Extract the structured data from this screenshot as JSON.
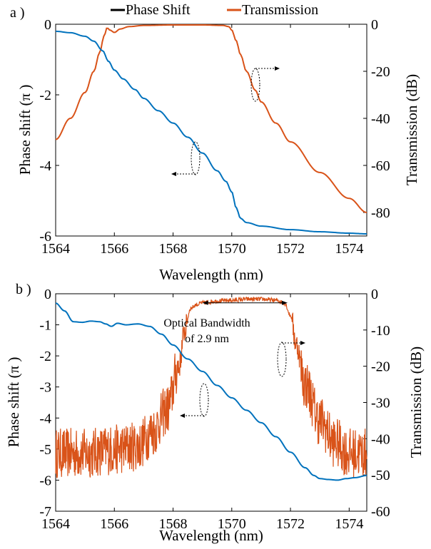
{
  "legend": {
    "phase_label": "Phase Shift",
    "trans_label": "Transmission",
    "phase_color": "#000000",
    "trans_color": "#D95319"
  },
  "colors": {
    "phase_line": "#0072BD",
    "trans_line": "#D95319"
  },
  "chart_data": [
    {
      "panel_label": "a )",
      "type": "line",
      "title": "",
      "xlabel": "Wavelength (nm)",
      "ylabel_left": "Phase shift (π )",
      "ylabel_right": "Transmission  (dB)",
      "xlim": [
        1564,
        1574.6
      ],
      "ylim_left": [
        -6,
        0
      ],
      "ylim_right": [
        -90,
        0
      ],
      "xticks": [
        1564,
        1566,
        1568,
        1570,
        1572,
        1574
      ],
      "yticks_left": [
        0,
        -2,
        -4,
        -6
      ],
      "yticks_right": [
        0,
        -20,
        -40,
        -60,
        -80
      ],
      "grid": false,
      "series": [
        {
          "name": "Phase Shift",
          "axis": "left",
          "x": [
            1564,
            1564.5,
            1565,
            1565.3,
            1565.6,
            1565.8,
            1566,
            1566.3,
            1566.7,
            1567,
            1567.5,
            1568,
            1568.5,
            1569,
            1569.5,
            1569.8,
            1570,
            1570.15,
            1570.3,
            1570.5,
            1571,
            1572,
            1573,
            1574,
            1574.6
          ],
          "y": [
            -0.2,
            -0.24,
            -0.34,
            -0.48,
            -0.75,
            -1.05,
            -1.3,
            -1.55,
            -1.85,
            -2.1,
            -2.45,
            -2.8,
            -3.2,
            -3.65,
            -4.15,
            -4.45,
            -4.75,
            -5.2,
            -5.5,
            -5.62,
            -5.72,
            -5.82,
            -5.88,
            -5.92,
            -5.94
          ]
        },
        {
          "name": "Transmission",
          "axis": "right",
          "x": [
            1564,
            1564.5,
            1565,
            1565.3,
            1565.5,
            1565.65,
            1565.75,
            1565.85,
            1566,
            1566.2,
            1566.5,
            1567,
            1568,
            1569,
            1569.7,
            1569.9,
            1570,
            1570.15,
            1570.3,
            1570.5,
            1570.8,
            1571,
            1571.5,
            1572,
            1573,
            1574,
            1574.6
          ],
          "y": [
            -49,
            -40,
            -29,
            -20,
            -12,
            -5,
            -1.5,
            -2.5,
            -3.5,
            -2,
            -1,
            -0.5,
            -0.3,
            -0.3,
            -0.5,
            -1,
            -2.5,
            -7,
            -13,
            -20,
            -28,
            -33,
            -42,
            -50,
            -63,
            -74,
            -80
          ]
        }
      ],
      "annotations": []
    },
    {
      "panel_label": "b )",
      "type": "line",
      "title": "",
      "xlabel": "Wavelength (nm)",
      "ylabel_left": "Phase shift (π )",
      "ylabel_right": "Transmission  (dB)",
      "xlim": [
        1564,
        1574.6
      ],
      "ylim_left": [
        -7,
        0
      ],
      "ylim_right": [
        -60,
        0
      ],
      "xticks": [
        1564,
        1566,
        1568,
        1570,
        1572,
        1574
      ],
      "yticks_left": [
        0,
        -1,
        -2,
        -3,
        -4,
        -5,
        -6,
        -7
      ],
      "yticks_right": [
        0,
        -10,
        -20,
        -30,
        -40,
        -50,
        -60
      ],
      "grid": false,
      "series": [
        {
          "name": "Phase Shift",
          "axis": "left",
          "x": [
            1564,
            1564.3,
            1564.6,
            1564.9,
            1565.2,
            1565.5,
            1565.7,
            1565.9,
            1566.1,
            1566.4,
            1566.8,
            1567.2,
            1567.6,
            1568,
            1568.5,
            1569,
            1569.5,
            1570,
            1570.5,
            1571,
            1571.5,
            1572,
            1572.5,
            1572.8,
            1573,
            1573.3,
            1573.6,
            1573.9,
            1574.2,
            1574.6
          ],
          "y": [
            -0.3,
            -0.55,
            -0.9,
            -0.92,
            -0.88,
            -0.9,
            -0.97,
            -1.05,
            -0.95,
            -1.0,
            -0.97,
            -1.05,
            -1.3,
            -1.65,
            -2.1,
            -2.5,
            -2.95,
            -3.35,
            -3.75,
            -4.15,
            -4.6,
            -5.1,
            -5.6,
            -5.85,
            -5.95,
            -5.98,
            -6.0,
            -5.95,
            -5.92,
            -5.85
          ]
        },
        {
          "name": "Transmission",
          "axis": "right",
          "x": [
            1564,
            1565,
            1566,
            1566.8,
            1567.3,
            1567.8,
            1568.2,
            1568.4,
            1568.6,
            1568.8,
            1569,
            1569.5,
            1570,
            1570.5,
            1571,
            1571.5,
            1571.8,
            1572,
            1572.2,
            1572.5,
            1573,
            1573.5,
            1574,
            1574.6
          ],
          "y": [
            -44,
            -44,
            -43,
            -42,
            -38,
            -32,
            -20,
            -10,
            -4,
            -3,
            -2.5,
            -2,
            -1.8,
            -1.5,
            -1.5,
            -1.8,
            -2.5,
            -6,
            -14,
            -25,
            -35,
            -41,
            -44,
            -44
          ],
          "noise": "high-frequency ripple"
        }
      ],
      "annotations": [
        {
          "text_line1": "Optical Bandwidth",
          "text_line2": "of 2.9 nm",
          "from_x": 1569,
          "to_x": 1571.9,
          "at_db": -2.5
        }
      ]
    }
  ]
}
